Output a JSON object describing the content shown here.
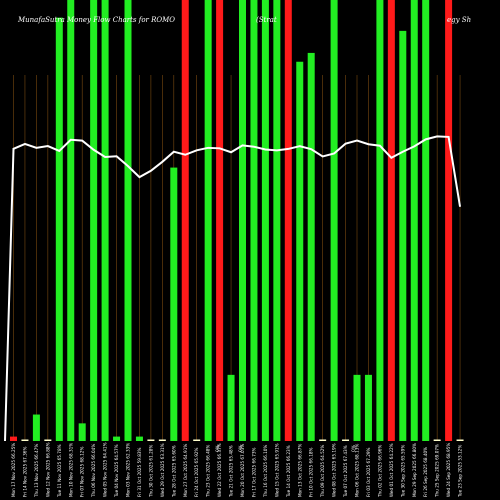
{
  "chart_data": {
    "type": "bar",
    "title_left": "MunafaSutra Money Flow Charts for ROMO",
    "title_mid": "(Strat",
    "title_right": "egy Sh",
    "ylim": [
      0,
      100
    ],
    "mfi_line_color": "#ffffff",
    "guide_line_color": "#7a4a10",
    "up_color": "#22ee22",
    "down_color": "#ff1a1a",
    "mid_labels": [
      "0%",
      "0%",
      "0%"
    ],
    "categories": [
      "Mon 17 Nov 2025",
      "Fri 14 Nov 2025",
      "Thu 13 Nov 2025",
      "Wed 12 Nov 2025",
      "Tue 11 Nov 2025",
      "Mon 10 Nov 2025",
      "Fri 07 Nov 2025",
      "Thu 06 Nov 2025",
      "Wed 05 Nov 2025",
      "Tue 04 Nov 2025",
      "Mon 03 Nov 2025",
      "Fri 31 Oct 2025",
      "Thu 30 Oct 2025",
      "Wed 29 Oct 2025",
      "Tue 28 Oct 2025",
      "Mon 27 Oct 2025",
      "Fri 24 Oct 2025",
      "Thu 23 Oct 2025",
      "Wed 22 Oct 2025",
      "Tue 21 Oct 2025",
      "Mon 20 Oct 2025",
      "Fri 17 Oct 2025",
      "Thu 16 Oct 2025",
      "Wed 15 Oct 2025",
      "Tue 14 Oct 2025",
      "Mon 13 Oct 2025",
      "Fri 10 Oct 2025",
      "Thu 09 Oct 2025",
      "Wed 08 Oct 2025",
      "Tue 07 Oct 2025",
      "Mon 06 Oct 2025",
      "Fri 03 Oct 2025",
      "Thu 02 Oct 2025",
      "Wed 01 Oct 2025",
      "Tue 30 Sep 2025",
      "Mon 29 Sep 2025",
      "Fri 26 Sep 2025",
      "Thu 25 Sep 2025",
      "Wed 24 Sep 2025",
      "Tue 23 Sep 2025"
    ],
    "tick_labels": [
      "Mon 17 Nov 2025 66.25%",
      "Fri 14 Nov 2025 67.36%",
      "Thu 13 Nov 2025 66.47%",
      "Wed 12 Nov 2025 66.88%",
      "Tue 11 Nov 2025 65.78%",
      "Mon 10 Nov 2025 68.31%",
      "Fri 07 Nov 2025 68.12%",
      "Thu 06 Nov 2025 66.04%",
      "Wed 05 Nov 2025 64.41%",
      "Tue 04 Nov 2025 64.57%",
      "Mon 03 Nov 2025 62.33%",
      "Fri 31 Oct 2025 59.83%",
      "Thu 30 Oct 2025 61.28%",
      "Wed 29 Oct 2025 63.31%",
      "Tue 28 Oct 2025 65.60%",
      "Mon 27 Oct 2025 64.91%",
      "Fri 24 Oct 2025 65.92%",
      "Thu 23 Oct 2025 66.48%",
      "Wed 22 Oct 2025 66.37%",
      "Tue 21 Oct 2025 65.48%",
      "Mon 20 Oct 2025 67.03%",
      "Fri 17 Oct 2025 66.73%",
      "Thu 16 Oct 2025 66.10%",
      "Wed 15 Oct 2025 65.91%",
      "Tue 14 Oct 2025 66.23%",
      "Mon 13 Oct 2025 66.87%",
      "Fri 10 Oct 2025 66.18%",
      "Thu 09 Oct 2025 64.52%",
      "Wed 08 Oct 2025 65.19%",
      "Tue 07 Oct 2025 67.43%",
      "Mon 06 Oct 2025 68.13%",
      "Fri 03 Oct 2025 67.29%",
      "Thu 02 Oct 2025 66.96%",
      "Wed 01 Oct 2025 64.22%",
      "Tue 30 Sep 2025 65.59%",
      "Mon 29 Sep 2025 66.80%",
      "Fri 26 Sep 2025 68.40%",
      "Thu 25 Sep 2025 69.07%",
      "Wed 24 Sep 2025 68.95%",
      "Tue 23 Sep 2025 53.12%"
    ],
    "series": [
      {
        "name": "Money flow",
        "values": [
          1,
          0,
          6,
          0,
          96,
          100,
          4,
          100,
          100,
          1,
          100,
          1,
          0,
          0,
          62,
          100,
          0,
          100,
          100,
          15,
          100,
          100,
          100,
          100,
          100,
          86,
          88,
          0,
          100,
          0,
          15,
          15,
          100,
          100,
          93,
          100,
          100,
          0,
          100,
          0
        ],
        "colors": [
          "down",
          "up",
          "up",
          "up",
          "up",
          "up",
          "up",
          "up",
          "up",
          "up",
          "up",
          "up",
          "up",
          "up",
          "up",
          "down",
          "up",
          "up",
          "down",
          "up",
          "up",
          "up",
          "up",
          "up",
          "down",
          "up",
          "up",
          "up",
          "up",
          "up",
          "up",
          "up",
          "up",
          "down",
          "up",
          "up",
          "up",
          "up",
          "down",
          "up"
        ]
      }
    ]
  }
}
